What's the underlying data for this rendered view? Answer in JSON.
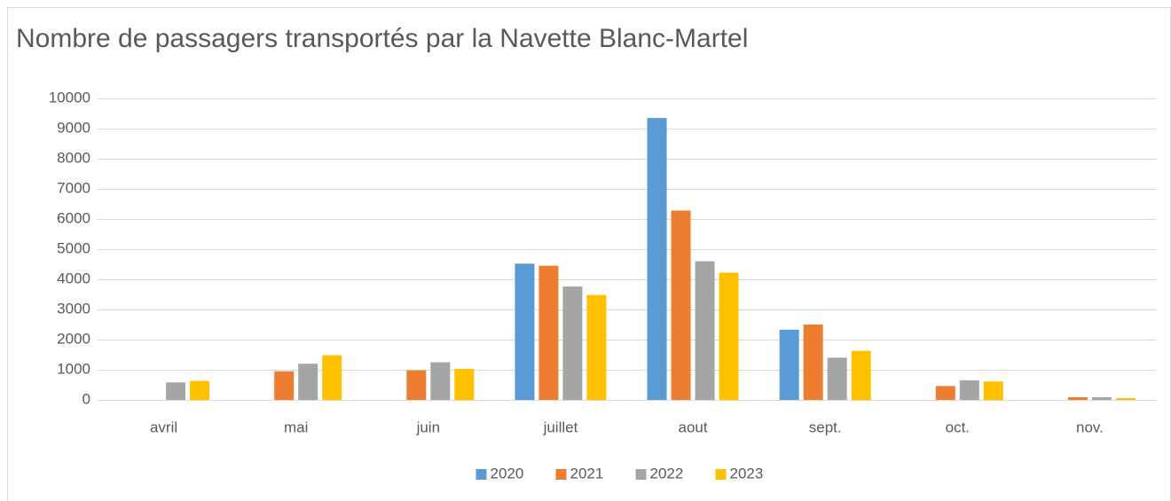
{
  "chart_data": {
    "type": "bar",
    "title": "Nombre de passagers transportés par la Navette Blanc-Martel",
    "categories": [
      "avril",
      "mai",
      "juin",
      "juillet",
      "aout",
      "sept.",
      "oct.",
      "nov."
    ],
    "series": [
      {
        "name": "2020",
        "color": "#5b9bd5",
        "values": [
          null,
          null,
          null,
          4520,
          9350,
          2330,
          null,
          null
        ]
      },
      {
        "name": "2021",
        "color": "#ed7d31",
        "values": [
          null,
          950,
          980,
          4450,
          6280,
          2500,
          460,
          90
        ]
      },
      {
        "name": "2022",
        "color": "#a5a5a5",
        "values": [
          580,
          1200,
          1250,
          3760,
          4600,
          1400,
          650,
          90
        ]
      },
      {
        "name": "2023",
        "color": "#ffc000",
        "values": [
          630,
          1480,
          1030,
          3480,
          4220,
          1630,
          610,
          60
        ]
      }
    ],
    "ylim": [
      0,
      10000
    ],
    "yticks": [
      0,
      1000,
      2000,
      3000,
      4000,
      5000,
      6000,
      7000,
      8000,
      9000,
      10000
    ],
    "grid": true,
    "legend": "bottom"
  }
}
